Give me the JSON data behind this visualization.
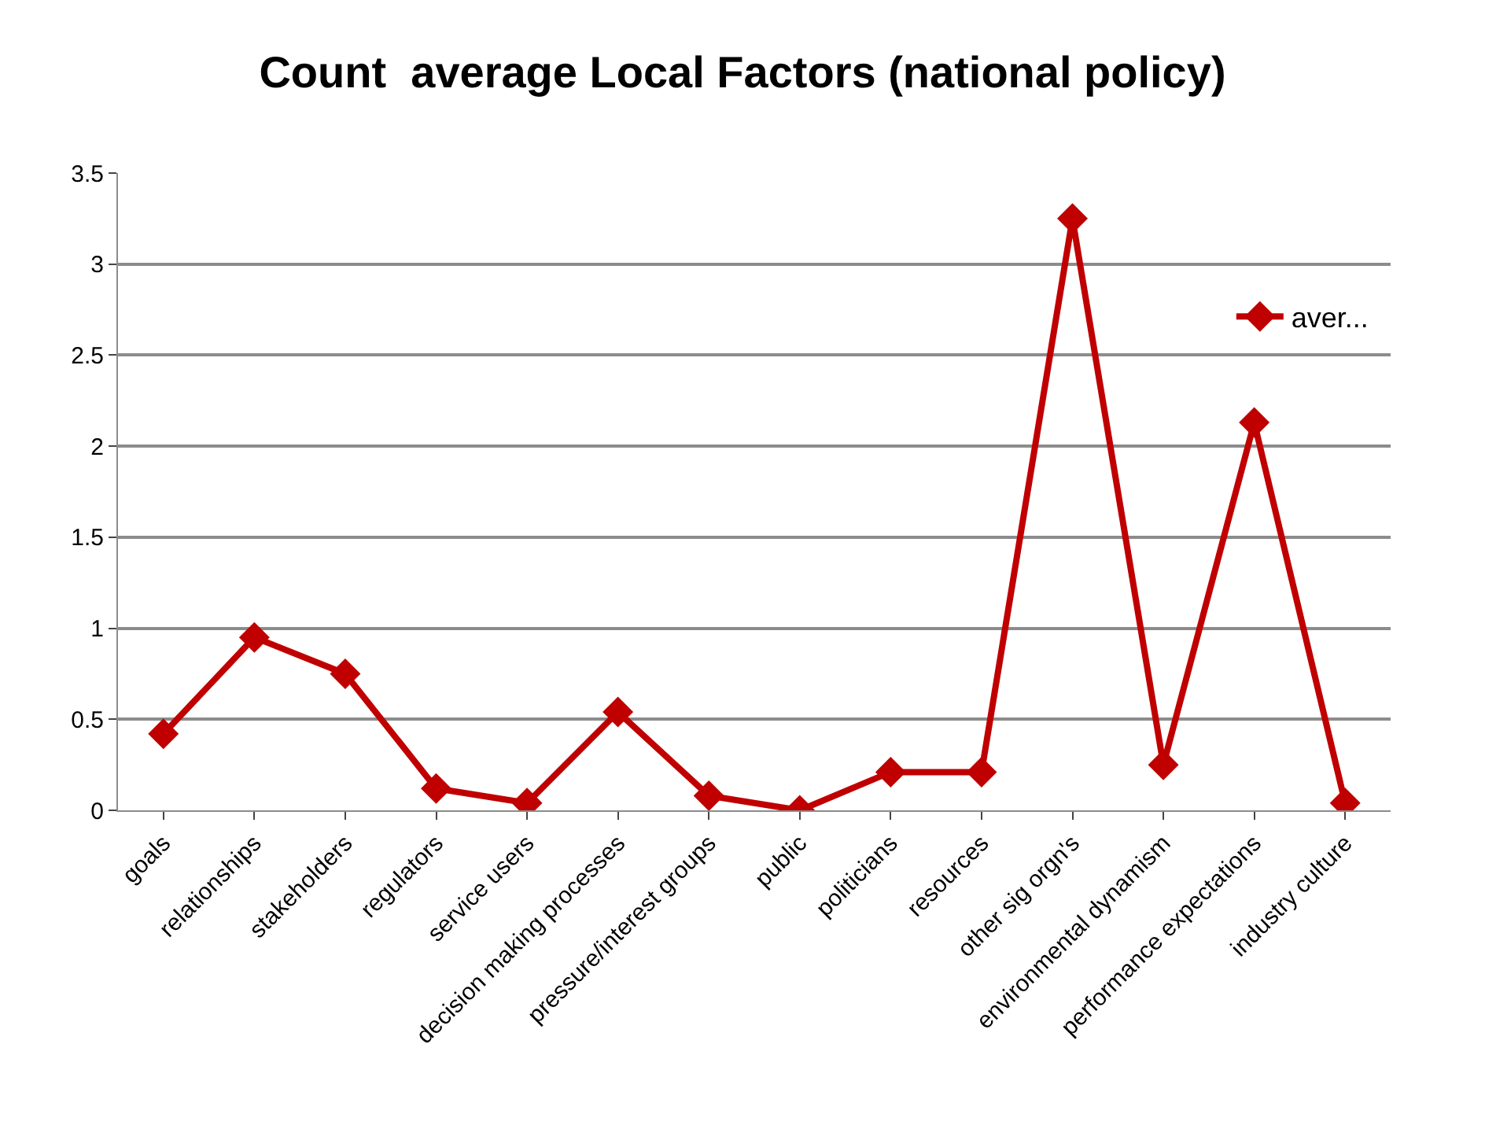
{
  "chart_data": {
    "type": "line",
    "title": "Count  average Local Factors (national policy)",
    "categories": [
      "goals",
      "relationships",
      "stakeholders",
      "regulators",
      "service users",
      "decision making processes",
      "pressure/interest groups",
      "public",
      "politicians",
      "resources",
      "other sig orgn's",
      "environmental dynamism",
      "performance expectations",
      "industry culture"
    ],
    "series": [
      {
        "name": "aver...",
        "color": "#c00000",
        "values": [
          0.42,
          0.95,
          0.75,
          0.12,
          0.04,
          0.54,
          0.08,
          0,
          0.21,
          0.21,
          3.25,
          0.25,
          2.13,
          0.04
        ]
      }
    ],
    "ylim": [
      0,
      3.5
    ],
    "yticks": [
      0,
      0.5,
      1,
      1.5,
      2,
      2.5,
      3,
      3.5
    ],
    "grid": "y",
    "legend": "top right",
    "marker": "diamond",
    "line_style": "solid"
  }
}
